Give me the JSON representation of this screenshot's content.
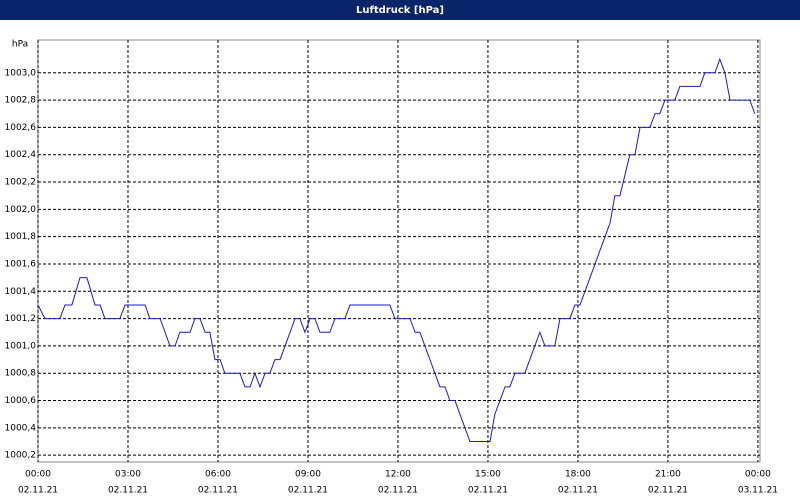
{
  "chart_data": {
    "type": "line",
    "title": "Luftdruck [hPa]",
    "y_unit": "hPa",
    "x_dates": [
      "02.11.21",
      "02.11.21",
      "02.11.21",
      "02.11.21",
      "02.11.21",
      "02.11.21",
      "02.11.21",
      "02.11.21",
      "03.11.21"
    ],
    "xlim": [
      0,
      24.07
    ],
    "xticks": [
      {
        "value": 0,
        "label": "00:00"
      },
      {
        "value": 3,
        "label": "03:00"
      },
      {
        "value": 6,
        "label": "06:00"
      },
      {
        "value": 9,
        "label": "09:00"
      },
      {
        "value": 12,
        "label": "12:00"
      },
      {
        "value": 15,
        "label": "15:00"
      },
      {
        "value": 18,
        "label": "18:00"
      },
      {
        "value": 21,
        "label": "21:00"
      },
      {
        "value": 24,
        "label": "00:00"
      }
    ],
    "ylim": [
      1000.15,
      1003.24
    ],
    "yticks": [
      {
        "value": 1000.2,
        "label": "1000,2"
      },
      {
        "value": 1000.4,
        "label": "1000,4"
      },
      {
        "value": 1000.6,
        "label": "1000,6"
      },
      {
        "value": 1000.8,
        "label": "1000,8"
      },
      {
        "value": 1001.0,
        "label": "1001,0"
      },
      {
        "value": 1001.2,
        "label": "1001,2"
      },
      {
        "value": 1001.4,
        "label": "1001,4"
      },
      {
        "value": 1001.6,
        "label": "1001,6"
      },
      {
        "value": 1001.8,
        "label": "1001,8"
      },
      {
        "value": 1002.0,
        "label": "1002,0"
      },
      {
        "value": 1002.2,
        "label": "1002,2"
      },
      {
        "value": 1002.4,
        "label": "1002,4"
      },
      {
        "value": 1002.6,
        "label": "1002,6"
      },
      {
        "value": 1002.8,
        "label": "1002,8"
      },
      {
        "value": 1003.0,
        "label": "1003,0"
      }
    ],
    "grid": true,
    "x": [
      0,
      0.23,
      0.73,
      0.9,
      1.13,
      1.4,
      1.63,
      1.9,
      2.07,
      2.23,
      2.73,
      2.9,
      3.57,
      3.73,
      4.07,
      4.4,
      4.57,
      4.73,
      5.07,
      5.23,
      5.4,
      5.57,
      5.73,
      5.9,
      6.07,
      6.23,
      6.73,
      6.9,
      7.07,
      7.23,
      7.4,
      7.57,
      7.73,
      7.9,
      8.07,
      8.57,
      8.73,
      8.9,
      9.07,
      9.23,
      9.4,
      9.73,
      9.9,
      10.23,
      10.4,
      11.73,
      11.9,
      12.4,
      12.57,
      12.73,
      13.4,
      13.57,
      13.73,
      13.9,
      14.4,
      15.07,
      15.23,
      15.57,
      15.73,
      15.9,
      16.23,
      16.73,
      16.9,
      17.23,
      17.4,
      17.73,
      17.9,
      18.07,
      19.07,
      19.23,
      19.4,
      19.73,
      19.9,
      20.07,
      20.4,
      20.57,
      20.73,
      20.9,
      21.23,
      21.4,
      22.07,
      22.23,
      22.57,
      22.73,
      22.9,
      23.07,
      23.73,
      23.9
    ],
    "series": [
      {
        "name": "Luftdruck",
        "color": "#1a1acc",
        "values": [
          1001.3,
          1001.2,
          1001.2,
          1001.3,
          1001.3,
          1001.5,
          1001.5,
          1001.3,
          1001.3,
          1001.2,
          1001.2,
          1001.3,
          1001.3,
          1001.2,
          1001.2,
          1001.0,
          1001.0,
          1001.1,
          1001.1,
          1001.2,
          1001.2,
          1001.1,
          1001.1,
          1000.9,
          1000.9,
          1000.8,
          1000.8,
          1000.7,
          1000.7,
          1000.8,
          1000.7,
          1000.8,
          1000.8,
          1000.9,
          1000.9,
          1001.2,
          1001.2,
          1001.1,
          1001.2,
          1001.2,
          1001.1,
          1001.1,
          1001.2,
          1001.2,
          1001.3,
          1001.3,
          1001.2,
          1001.2,
          1001.1,
          1001.1,
          1000.7,
          1000.7,
          1000.6,
          1000.6,
          1000.3,
          1000.3,
          1000.5,
          1000.7,
          1000.7,
          1000.8,
          1000.8,
          1001.1,
          1001.0,
          1001.0,
          1001.2,
          1001.2,
          1001.3,
          1001.3,
          1001.9,
          1002.1,
          1002.1,
          1002.4,
          1002.4,
          1002.6,
          1002.6,
          1002.7,
          1002.7,
          1002.8,
          1002.8,
          1002.9,
          1002.9,
          1003.0,
          1003.0,
          1003.1,
          1003.0,
          1002.8,
          1002.8,
          1002.7
        ]
      }
    ]
  }
}
